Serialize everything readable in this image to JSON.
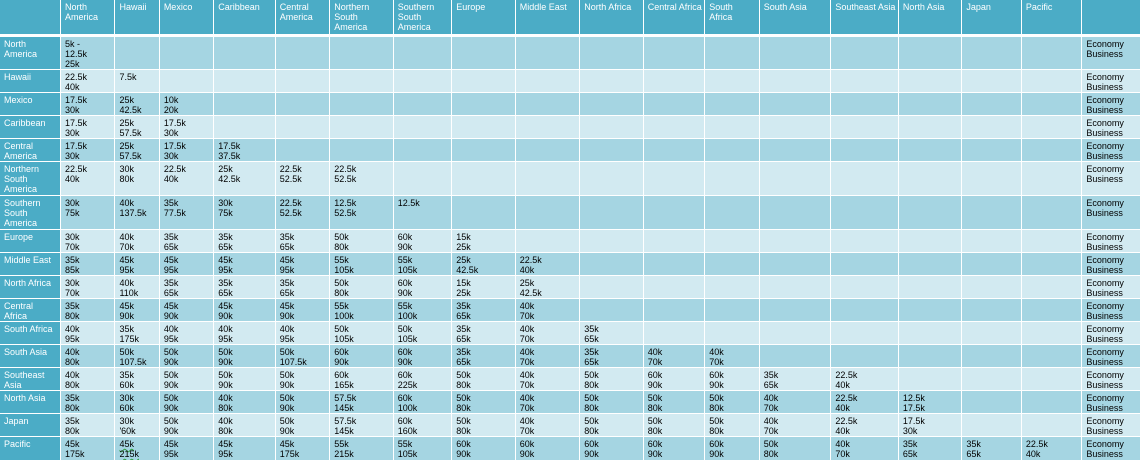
{
  "columns": [
    "",
    "North America",
    "Hawaii",
    "Mexico",
    "Caribbean",
    "Central America",
    "Northern South America",
    "Southern South America",
    "Europe",
    "Middle East",
    "North Africa",
    "Central Africa",
    "South Africa",
    "South Asia",
    "Southeast Asia",
    "North Asia",
    "Japan",
    "Pacific",
    ""
  ],
  "rows": [
    {
      "label": "North America",
      "height": 33,
      "cells": [
        [
          "5k -",
          "12.5k",
          "25k"
        ]
      ]
    },
    {
      "label": "Hawaii",
      "height": 23,
      "cells": [
        [
          "22.5k",
          "40k"
        ],
        [
          "7.5k"
        ]
      ]
    },
    {
      "label": "Mexico",
      "height": 23,
      "cells": [
        [
          "17.5k",
          "30k"
        ],
        [
          "25k",
          "42.5k"
        ],
        [
          "10k",
          "20k"
        ]
      ]
    },
    {
      "label": "Caribbean",
      "height": 23,
      "cells": [
        [
          "17.5k",
          "30k"
        ],
        [
          "25k",
          "57.5k"
        ],
        [
          "17.5k",
          "30k"
        ]
      ]
    },
    {
      "label": "Central America",
      "height": 23,
      "cells": [
        [
          "17.5k",
          "30k"
        ],
        [
          "25k",
          "57.5k"
        ],
        [
          "17.5k",
          "30k"
        ],
        [
          "17.5k",
          "37.5k"
        ]
      ]
    },
    {
      "label": "Northern South America",
      "height": 34,
      "cells": [
        [
          "22.5k",
          "40k"
        ],
        [
          "30k",
          "80k"
        ],
        [
          "22.5k",
          "40k"
        ],
        [
          "25k",
          "42.5k"
        ],
        [
          "22.5k",
          "52.5k"
        ],
        [
          "22.5k",
          "52.5k"
        ]
      ]
    },
    {
      "label": "Southern South America",
      "height": 34,
      "cells": [
        [
          "30k",
          "75k"
        ],
        [
          "40k",
          "137.5k"
        ],
        [
          "35k",
          "77.5k"
        ],
        [
          "30k",
          "75k"
        ],
        [
          "22.5k",
          "52.5k"
        ],
        [
          "12.5k",
          "52.5k"
        ],
        [
          "12.5k"
        ]
      ]
    },
    {
      "label": "Europe",
      "height": 23,
      "cells": [
        [
          "30k",
          "70k"
        ],
        [
          "40k",
          "70k"
        ],
        [
          "35k",
          "65k"
        ],
        [
          "35k",
          "65k"
        ],
        [
          "35k",
          "65k"
        ],
        [
          "50k",
          "80k"
        ],
        [
          "60k",
          "90k"
        ],
        [
          "15k",
          "25k"
        ]
      ]
    },
    {
      "label": "Middle East",
      "height": 23,
      "cells": [
        [
          "35k",
          "85k"
        ],
        [
          "45k",
          "95k"
        ],
        [
          "45k",
          "95k"
        ],
        [
          "45k",
          "95k"
        ],
        [
          "45k",
          "95k"
        ],
        [
          "55k",
          "105k"
        ],
        [
          "55k",
          "105k"
        ],
        [
          "25k",
          "42.5k"
        ],
        [
          "22.5k",
          "40k"
        ]
      ]
    },
    {
      "label": "North Africa",
      "height": 23,
      "cells": [
        [
          "30k",
          "70k"
        ],
        [
          "40k",
          "110k"
        ],
        [
          "35k",
          "65k"
        ],
        [
          "35k",
          "65k"
        ],
        [
          "35k",
          "65k"
        ],
        [
          "50k",
          "80k"
        ],
        [
          "60k",
          "90k"
        ],
        [
          "15k",
          "25k"
        ],
        [
          "25k",
          "42.5k"
        ]
      ]
    },
    {
      "label": "Central Africa",
      "height": 23,
      "cells": [
        [
          "35k",
          "80k"
        ],
        [
          "45k",
          "90k"
        ],
        [
          "45k",
          "90k"
        ],
        [
          "45k",
          "90k"
        ],
        [
          "45k",
          "90k"
        ],
        [
          "55k",
          "100k"
        ],
        [
          "55k",
          "100k"
        ],
        [
          "35k",
          "65k"
        ],
        [
          "40k",
          "70k"
        ]
      ]
    },
    {
      "label": "South Africa",
      "height": 23,
      "cells": [
        [
          "40k",
          "95k"
        ],
        [
          "35k",
          "175k"
        ],
        [
          "40k",
          "95k"
        ],
        [
          "40k",
          "95k"
        ],
        [
          "40k",
          "95k"
        ],
        [
          "50k",
          "105k"
        ],
        [
          "50k",
          "105k"
        ],
        [
          "35k",
          "65k"
        ],
        [
          "40k",
          "70k"
        ],
        [
          "35k",
          "65k"
        ]
      ]
    },
    {
      "label": "South Asia",
      "height": 23,
      "cells": [
        [
          "40k",
          "80k"
        ],
        [
          "50k",
          "107.5k"
        ],
        [
          "50k",
          "90k"
        ],
        [
          "50k",
          "90k"
        ],
        [
          "50k",
          "107.5k"
        ],
        [
          "60k",
          "90k"
        ],
        [
          "60k",
          "90k"
        ],
        [
          "35k",
          "65k"
        ],
        [
          "40k",
          "70k"
        ],
        [
          "35k",
          "65k"
        ],
        [
          "40k",
          "70k"
        ],
        [
          "40k",
          "70k"
        ]
      ]
    },
    {
      "label": "Southeast Asia",
      "height": 23,
      "cells": [
        [
          "40k",
          "80k"
        ],
        [
          "35k",
          "60k"
        ],
        [
          "50k",
          "90k"
        ],
        [
          "50k",
          "90k"
        ],
        [
          "50k",
          "90k"
        ],
        [
          "60k",
          "165k"
        ],
        [
          "60k",
          "225k"
        ],
        [
          "50k",
          "80k"
        ],
        [
          "40k",
          "70k"
        ],
        [
          "50k",
          "80k"
        ],
        [
          "60k",
          "90k"
        ],
        [
          "60k",
          "90k"
        ],
        [
          "35k",
          "65k"
        ],
        [
          "22.5k",
          "40k"
        ]
      ]
    },
    {
      "label": "North Asia",
      "height": 23,
      "cells": [
        [
          "35k",
          "80k"
        ],
        [
          "30k",
          "60k"
        ],
        [
          "50k",
          "90k"
        ],
        [
          "40k",
          "80k"
        ],
        [
          "50k",
          "90k"
        ],
        [
          "57.5k",
          "145k"
        ],
        [
          "60k",
          "100k"
        ],
        [
          "50k",
          "80k"
        ],
        [
          "40k",
          "70k"
        ],
        [
          "50k",
          "80k"
        ],
        [
          "50k",
          "80k"
        ],
        [
          "50k",
          "80k"
        ],
        [
          "40k",
          "70k"
        ],
        [
          "22.5k",
          "40k"
        ],
        [
          "12.5k",
          "17.5k"
        ]
      ]
    },
    {
      "label": "Japan",
      "height": 23,
      "cells": [
        [
          "35k",
          "80k"
        ],
        [
          "30k",
          "'60k"
        ],
        [
          "50k",
          "90k"
        ],
        [
          "40k",
          "80k"
        ],
        [
          "50k",
          "90k"
        ],
        [
          "57.5k",
          "145k"
        ],
        [
          "60k",
          "160k"
        ],
        [
          "50k",
          "80k"
        ],
        [
          "40k",
          "70k"
        ],
        [
          "50k",
          "80k"
        ],
        [
          "50k",
          "80k"
        ],
        [
          "50k",
          "80k"
        ],
        [
          "40k",
          "70k"
        ],
        [
          "22.5k",
          "40k"
        ],
        [
          "17.5k",
          "30k"
        ]
      ]
    },
    {
      "label": "Pacific",
      "height": 24,
      "cells": [
        [
          "45k",
          "175k"
        ],
        [
          "45k",
          "215k"
        ],
        [
          "45k",
          "95k"
        ],
        [
          "45k",
          "95k"
        ],
        [
          "45k",
          "175k"
        ],
        [
          "55k",
          "215k"
        ],
        [
          "55k",
          "105k"
        ],
        [
          "60k",
          "90k"
        ],
        [
          "60k",
          "90k"
        ],
        [
          "60k",
          "90k"
        ],
        [
          "60k",
          "90k"
        ],
        [
          "60k",
          "90k"
        ],
        [
          "50k",
          "80k"
        ],
        [
          "40k",
          "70k"
        ],
        [
          "35k",
          "65k"
        ],
        [
          "35k",
          "65k"
        ],
        [
          "22.5k",
          "40k"
        ]
      ]
    }
  ],
  "class_labels": [
    "Economy",
    "Business"
  ]
}
